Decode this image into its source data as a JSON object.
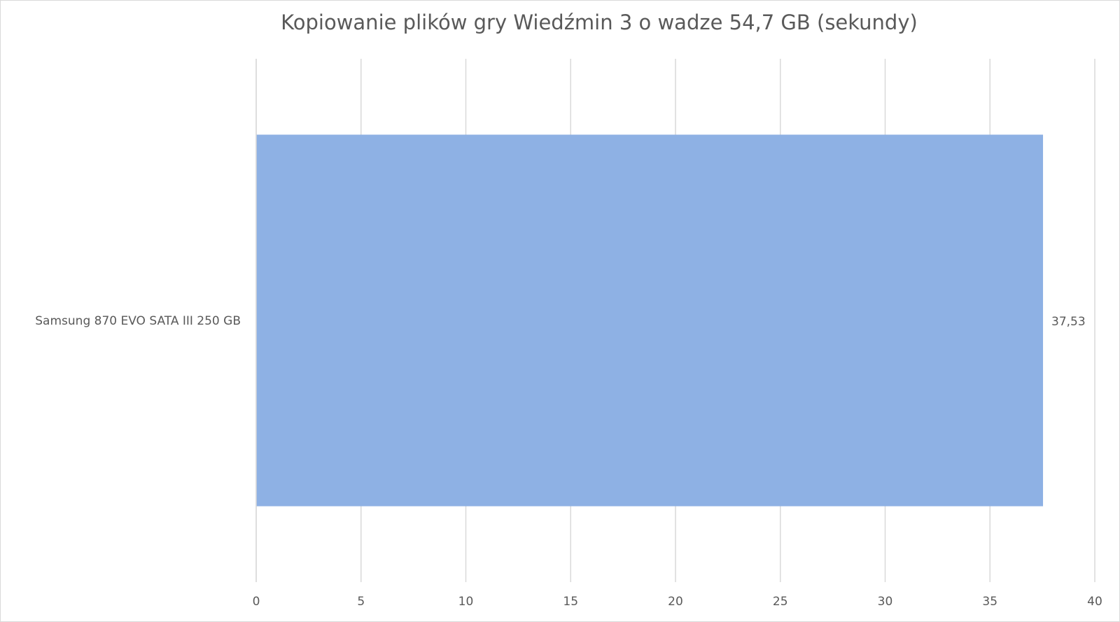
{
  "chart_data": {
    "type": "bar",
    "horizontal": true,
    "title": "Kopiowanie plików gry Wiedźmin 3 o wadze 54,7 GB (sekundy)",
    "categories": [
      "Samsung 870 EVO SATA III 250 GB"
    ],
    "values": [
      37.53
    ],
    "value_labels": [
      "37,53"
    ],
    "color": "#8eb1e4",
    "xlim": [
      0,
      40
    ],
    "xticks": [
      0,
      5,
      10,
      15,
      20,
      25,
      30,
      35,
      40
    ],
    "grid": true
  }
}
